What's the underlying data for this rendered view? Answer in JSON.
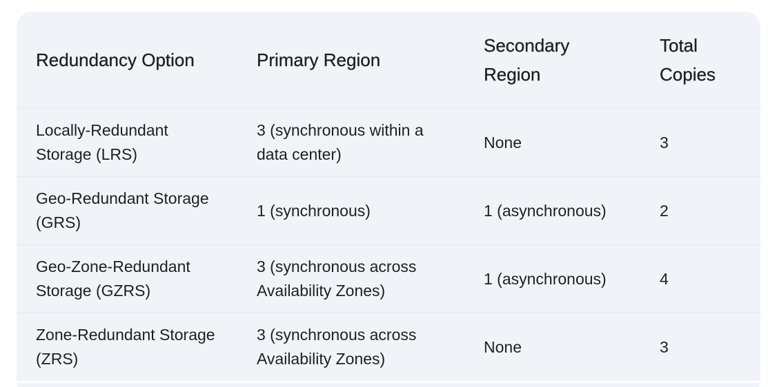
{
  "table": {
    "headers": [
      "Redundancy Option",
      "Primary Region",
      "Secondary Region",
      "Total Copies"
    ],
    "rows": [
      [
        "Locally-Redundant Storage (LRS)",
        "3 (synchronous within a data center)",
        "None",
        "3"
      ],
      [
        "Geo-Redundant Storage (GRS)",
        "1 (synchronous)",
        "1 (asynchronous)",
        "2"
      ],
      [
        "Geo-Zone-Redundant Storage (GZRS)",
        "3 (synchronous across Availability Zones)",
        "1 (asynchronous)",
        "4"
      ],
      [
        "Zone-Redundant Storage (ZRS)",
        "3 (synchronous across Availability Zones)",
        "None",
        "3"
      ]
    ]
  },
  "colors": {
    "table_background": "#f0f4f9",
    "text": "#1f1f1f",
    "row_divider": "#e3e8ef"
  }
}
